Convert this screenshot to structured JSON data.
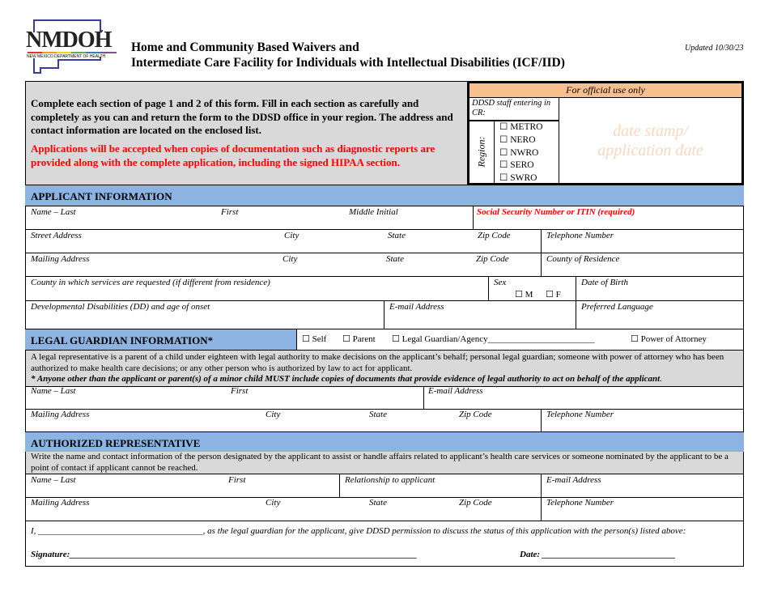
{
  "header": {
    "logo_text": "NMDOH",
    "logo_subtitle": "NEW MEXICO DEPARTMENT OF HEALTH",
    "title_line1": "Home and Community Based Waivers and",
    "title_line2": "Intermediate Care Facility for Individuals with Intellectual Disabilities (ICF/IID)",
    "updated": "Updated 10/30/23"
  },
  "intro": {
    "instructions": "Complete each section of page 1 and 2 of this form. Fill in each section as carefully and completely as you can and return the form to the DDSD office in your region. The address and contact information are located on the enclosed list.",
    "warning": "Applications will be accepted when copies of documentation such as diagnostic reports are provided along with the complete application, including the signed HIPAA section.",
    "warning_color": "#ff0000"
  },
  "official": {
    "title": "For official use only",
    "staff_label": "DDSD staff entering in CR:",
    "region_label": "Region:",
    "regions": [
      "METRO",
      "NERO",
      "NWRO",
      "SERO",
      "SWRO"
    ],
    "stamp_line1": "date stamp/",
    "stamp_line2": "application date"
  },
  "applicant": {
    "header": "APPLICANT INFORMATION",
    "name_last": "Name –  Last",
    "first": "First",
    "middle": "Middle Initial",
    "ssn": "Social Security Number or ITIN (required)",
    "street": "Street Address",
    "city": "City",
    "state": "State",
    "zip": "Zip Code",
    "telephone": "Telephone Number",
    "mailing": "Mailing Address",
    "county_res": "County of Residence",
    "county_services": "County in which services are requested (if different from residence)",
    "sex": "Sex",
    "sex_m": "☐ M",
    "sex_f": "☐ F",
    "dob": "Date of Birth",
    "dd": "Developmental Disabilities (DD) and age of onset",
    "email": "E-mail Address",
    "language": "Preferred Language"
  },
  "guardian": {
    "header": "LEGAL GUARDIAN INFORMATION*",
    "opt_self": "☐ Self",
    "opt_parent": "☐ Parent",
    "opt_agency": "☐ Legal Guardian/Agency________________________",
    "opt_poa": "☐ Power of Attorney",
    "description": "A legal representative is a parent of a child under eighteen with legal authority to make decisions on the applicant’s behalf; personal legal guardian; someone with power of attorney who has been authorized to make health care decisions; or any other person who is authorized by law to act for applicant.",
    "note": "* Anyone other than the applicant or parent(s) of a minor child MUST include copies of documents that provide evidence of legal authority to act on behalf of the applicant",
    "name_last": "Name –  Last",
    "first": "First",
    "email": "E-mail Address",
    "mailing": "Mailing Address",
    "city": "City",
    "state": "State",
    "zip": "Zip Code",
    "telephone": "Telephone Number"
  },
  "authorized": {
    "header": "AUTHORIZED REPRESENTATIVE",
    "description": "Write the name and contact information of the person designated by the applicant to assist or handle affairs related to applicant’s health care services or someone nominated by the applicant to be a point of contact if applicant cannot be reached.",
    "name_last": "Name –  Last",
    "first": "First",
    "relationship": "Relationship to applicant",
    "email": "E-mail Address",
    "mailing": "Mailing Address",
    "city": "City",
    "state": "State",
    "zip": "Zip Code",
    "telephone": "Telephone Number",
    "permission": "I, _____________________________________, as the legal guardian for the applicant, give DDSD permission to discuss the status of this application with the person(s) listed above:",
    "signature": "Signature:______________________________________________________________________________",
    "date": "Date: ______________________________"
  },
  "colors": {
    "section_header": "#8db3e2",
    "official_header": "#f9c08f",
    "gray": "#d9d9d9"
  }
}
